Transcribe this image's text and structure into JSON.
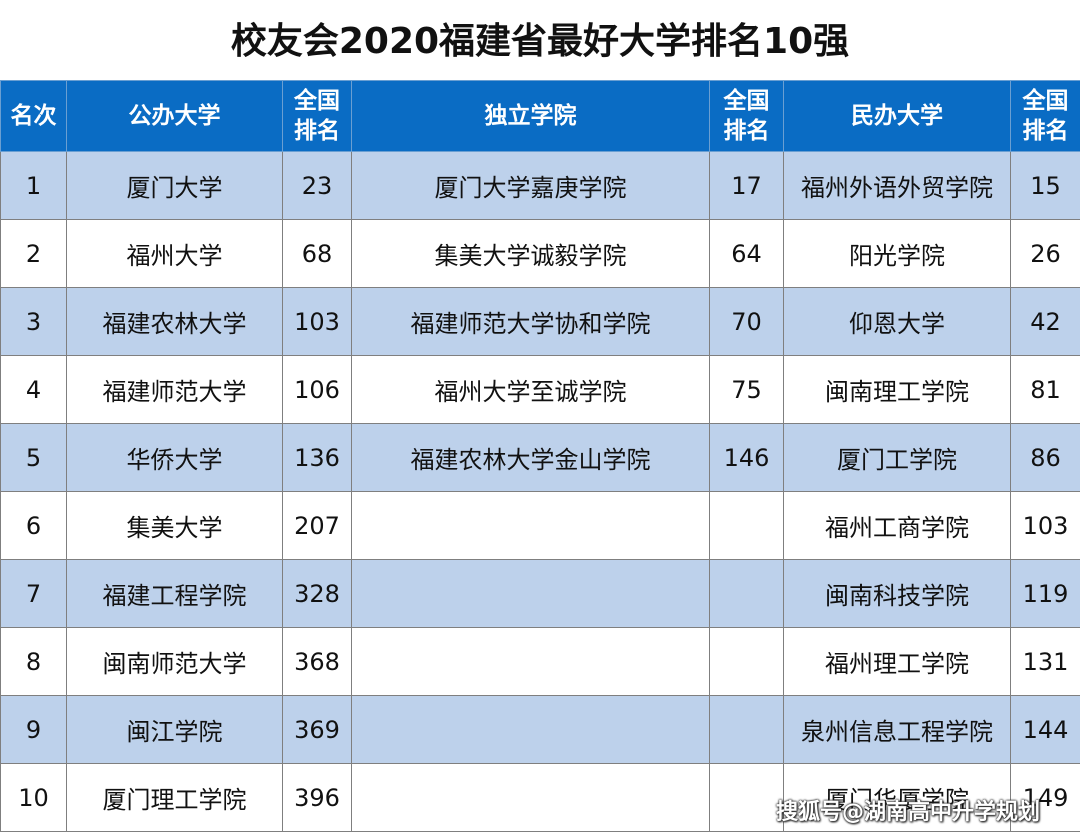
{
  "title": "校友会2020福建省最好大学排名10强",
  "headers": {
    "rank": "名次",
    "public": "公办大学",
    "national_rank_line1": "全国",
    "national_rank_line2": "排名",
    "independent": "独立学院",
    "private": "民办大学"
  },
  "rows": [
    {
      "rank": "1",
      "public": "厦门大学",
      "public_nr": "23",
      "indep": "厦门大学嘉庚学院",
      "indep_nr": "17",
      "private": "福州外语外贸学院",
      "private_nr": "15"
    },
    {
      "rank": "2",
      "public": "福州大学",
      "public_nr": "68",
      "indep": "集美大学诚毅学院",
      "indep_nr": "64",
      "private": "阳光学院",
      "private_nr": "26"
    },
    {
      "rank": "3",
      "public": "福建农林大学",
      "public_nr": "103",
      "indep": "福建师范大学协和学院",
      "indep_nr": "70",
      "private": "仰恩大学",
      "private_nr": "42"
    },
    {
      "rank": "4",
      "public": "福建师范大学",
      "public_nr": "106",
      "indep": "福州大学至诚学院",
      "indep_nr": "75",
      "private": "闽南理工学院",
      "private_nr": "81"
    },
    {
      "rank": "5",
      "public": "华侨大学",
      "public_nr": "136",
      "indep": "福建农林大学金山学院",
      "indep_nr": "146",
      "private": "厦门工学院",
      "private_nr": "86"
    },
    {
      "rank": "6",
      "public": "集美大学",
      "public_nr": "207",
      "indep": "",
      "indep_nr": "",
      "private": "福州工商学院",
      "private_nr": "103"
    },
    {
      "rank": "7",
      "public": "福建工程学院",
      "public_nr": "328",
      "indep": "",
      "indep_nr": "",
      "private": "闽南科技学院",
      "private_nr": "119"
    },
    {
      "rank": "8",
      "public": "闽南师范大学",
      "public_nr": "368",
      "indep": "",
      "indep_nr": "",
      "private": "福州理工学院",
      "private_nr": "131"
    },
    {
      "rank": "9",
      "public": "闽江学院",
      "public_nr": "369",
      "indep": "",
      "indep_nr": "",
      "private": "泉州信息工程学院",
      "private_nr": "144"
    },
    {
      "rank": "10",
      "public": "厦门理工学院",
      "public_nr": "396",
      "indep": "",
      "indep_nr": "",
      "private": "厦门华厦学院",
      "private_nr": "149"
    }
  ],
  "watermark": "搜狐号@湖南高中升学规划",
  "colors": {
    "header_bg": "#0A6CC4",
    "stripe": "#BDD1EB"
  }
}
